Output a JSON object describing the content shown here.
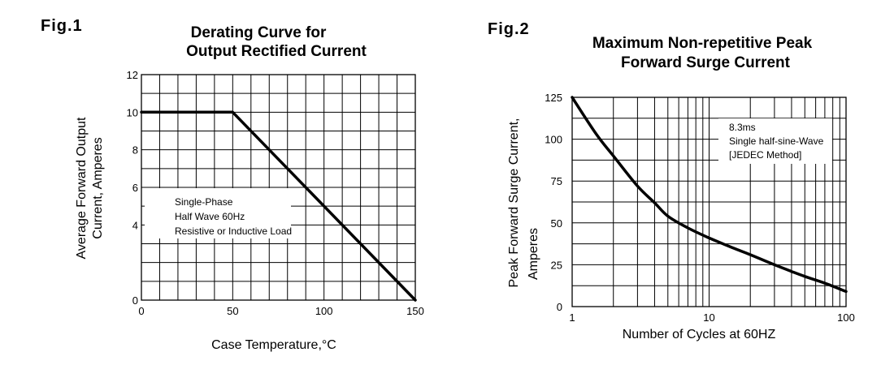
{
  "chart_data": [
    {
      "figure_label": "Fig.1",
      "type": "line",
      "title_lines": [
        "Derating Curve for",
        "Output Rectified Current"
      ],
      "xlabel": "Case Temperature,°C",
      "ylabel_lines": [
        "Average Forward Output",
        "Current, Amperes"
      ],
      "xlim": [
        0,
        150
      ],
      "ylim": [
        0,
        12
      ],
      "xticks": [
        0,
        50,
        100,
        150
      ],
      "yticks": [
        0,
        2,
        4,
        6,
        8,
        10,
        12
      ],
      "ytick_labels": [
        "0",
        "",
        "4",
        "6",
        "8",
        "10",
        "12"
      ],
      "grid": true,
      "series": [
        {
          "x": [
            0,
            50,
            150
          ],
          "y": [
            10,
            10,
            0
          ]
        }
      ],
      "annotation_lines": [
        "Single-Phase",
        "Half Wave 60Hz",
        "Resistive or Inductive Load"
      ]
    },
    {
      "figure_label": "Fig.2",
      "type": "line",
      "title_lines": [
        "Maximum Non-repetitive Peak",
        "Forward Surge Current"
      ],
      "xlabel": "Number of Cycles at 60HZ",
      "ylabel_lines": [
        "Peak Forward Surge Current,",
        "Amperes"
      ],
      "xscale": "log",
      "xlim": [
        1,
        100
      ],
      "ylim": [
        0,
        125
      ],
      "xticks": [
        1,
        10,
        100
      ],
      "yticks": [
        0,
        25,
        50,
        75,
        100,
        125
      ],
      "grid": true,
      "series": [
        {
          "x": [
            1,
            1.5,
            2,
            3,
            4,
            5,
            7,
            10,
            15,
            20,
            30,
            40,
            50,
            70,
            100
          ],
          "y": [
            125,
            103,
            90,
            72,
            62,
            54,
            47,
            41,
            35,
            31,
            25,
            21,
            18,
            14,
            9
          ]
        }
      ],
      "annotation_lines": [
        "8.3ms",
        "Single half-sine-Wave",
        "[JEDEC Method]"
      ]
    }
  ]
}
